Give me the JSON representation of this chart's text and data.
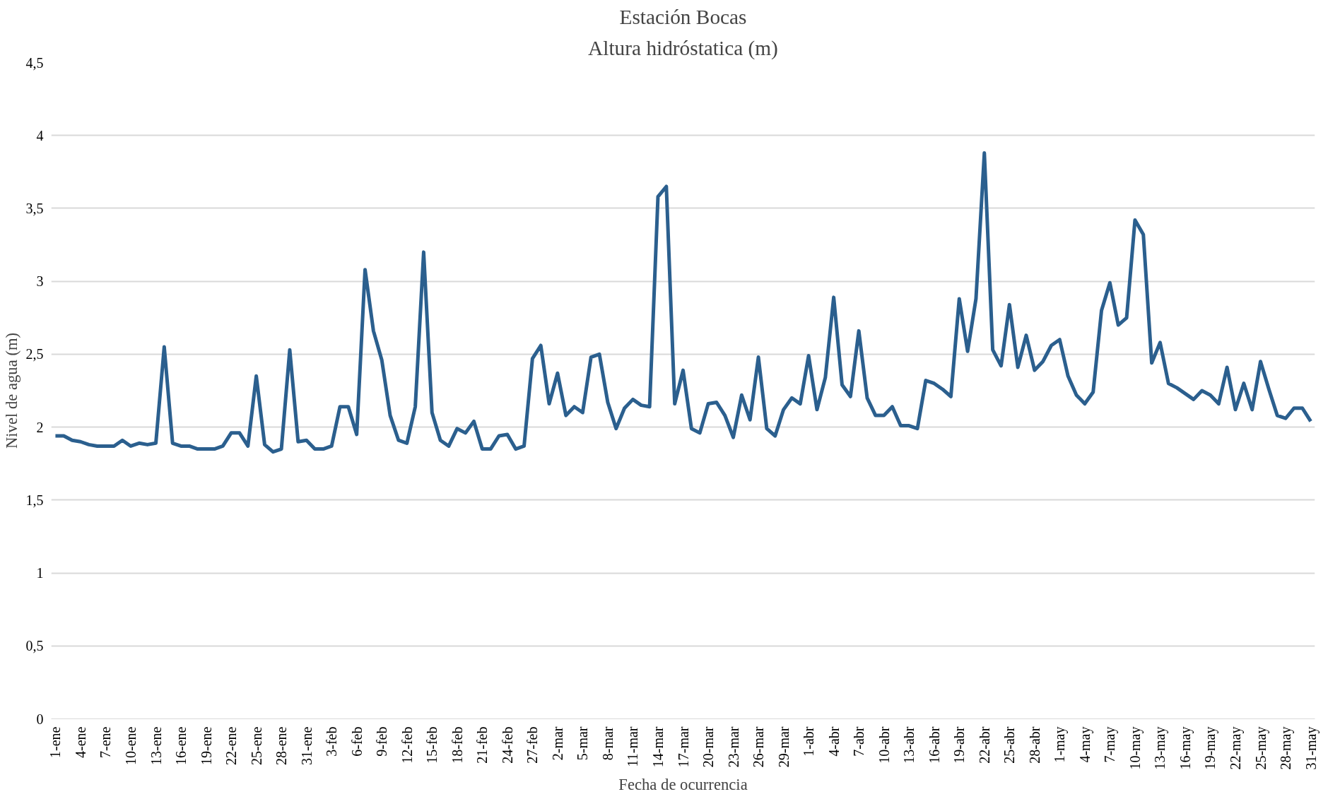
{
  "chart_data": {
    "type": "line",
    "title": "Estación Bocas",
    "subtitle": "Altura hidróstatica (m)",
    "xlabel": "Fecha de ocurrencia",
    "ylabel": "Nivel de agua (m)",
    "categories": [
      "1-ene",
      null,
      null,
      "4-ene",
      null,
      null,
      "7-ene",
      null,
      null,
      "10-ene",
      null,
      null,
      "13-ene",
      null,
      null,
      "16-ene",
      null,
      null,
      "19-ene",
      null,
      null,
      "22-ene",
      null,
      null,
      "25-ene",
      null,
      null,
      "28-ene",
      null,
      null,
      "31-ene",
      null,
      null,
      "3-feb",
      null,
      null,
      "6-feb",
      null,
      null,
      "9-feb",
      null,
      null,
      "12-feb",
      null,
      null,
      "15-feb",
      null,
      null,
      "18-feb",
      null,
      null,
      "21-feb",
      null,
      null,
      "24-feb",
      null,
      null,
      "27-feb",
      null,
      null,
      "2-mar",
      null,
      null,
      "5-mar",
      null,
      null,
      "8-mar",
      null,
      null,
      "11-mar",
      null,
      null,
      "14-mar",
      null,
      null,
      "17-mar",
      null,
      null,
      "20-mar",
      null,
      null,
      "23-mar",
      null,
      null,
      "26-mar",
      null,
      null,
      "29-mar",
      null,
      null,
      "1-abr",
      null,
      null,
      "4-abr",
      null,
      null,
      "7-abr",
      null,
      null,
      "10-abr",
      null,
      null,
      "13-abr",
      null,
      null,
      "16-abr",
      null,
      null,
      "19-abr",
      null,
      null,
      "22-abr",
      null,
      null,
      "25-abr",
      null,
      null,
      "28-abr",
      null,
      null,
      "1-may",
      null,
      null,
      "4-may",
      null,
      null,
      "7-may",
      null,
      null,
      "10-may",
      null,
      null,
      "13-may",
      null,
      null,
      "16-may",
      null,
      null,
      "19-may",
      null,
      null,
      "22-may",
      null,
      null,
      "25-may",
      null,
      null,
      "28-may",
      null,
      null,
      "31-may"
    ],
    "series": [
      {
        "color": "#2b5f8e",
        "values": [
          1.94,
          1.94,
          1.91,
          1.9,
          1.88,
          1.87,
          1.87,
          1.87,
          1.91,
          1.87,
          1.89,
          1.88,
          1.89,
          2.55,
          1.89,
          1.87,
          1.87,
          1.85,
          1.85,
          1.85,
          1.87,
          1.96,
          1.96,
          1.87,
          2.35,
          1.88,
          1.83,
          1.85,
          2.53,
          1.9,
          1.91,
          1.85,
          1.85,
          1.87,
          2.14,
          2.14,
          1.95,
          3.08,
          2.66,
          2.46,
          2.08,
          1.91,
          1.89,
          2.14,
          3.2,
          2.1,
          1.91,
          1.87,
          1.99,
          1.96,
          2.04,
          1.85,
          1.85,
          1.94,
          1.95,
          1.85,
          1.87,
          2.47,
          2.56,
          2.16,
          2.37,
          2.08,
          2.14,
          2.1,
          2.48,
          2.5,
          2.17,
          1.99,
          2.13,
          2.19,
          2.15,
          2.14,
          3.58,
          3.65,
          2.16,
          2.39,
          1.99,
          1.96,
          2.16,
          2.17,
          2.08,
          1.93,
          2.22,
          2.05,
          2.48,
          1.99,
          1.94,
          2.12,
          2.2,
          2.16,
          2.49,
          2.12,
          2.34,
          2.89,
          2.29,
          2.21,
          2.66,
          2.2,
          2.08,
          2.08,
          2.14,
          2.01,
          2.01,
          1.99,
          2.32,
          2.3,
          2.26,
          2.21,
          2.88,
          2.52,
          2.88,
          3.88,
          2.53,
          2.42,
          2.84,
          2.41,
          2.63,
          2.39,
          2.45,
          2.56,
          2.6,
          2.35,
          2.22,
          2.16,
          2.24,
          2.8,
          2.99,
          2.7,
          2.75,
          3.42,
          3.32,
          2.44,
          2.58,
          2.3,
          2.27,
          2.23,
          2.19,
          2.25,
          2.22,
          2.16,
          2.41,
          2.12,
          2.3,
          2.12,
          2.45,
          2.26,
          2.08,
          2.06,
          2.13,
          2.13,
          2.04
        ]
      }
    ],
    "ylim": [
      0,
      4.5
    ],
    "yticks": [
      0,
      {
        "value": 0.5,
        "label": "0,5"
      },
      1,
      {
        "value": 1.5,
        "label": "1,5"
      },
      2,
      {
        "value": 2.5,
        "label": "2,5"
      },
      3,
      {
        "value": 3.5,
        "label": "3,5"
      },
      4,
      {
        "value": 4.5,
        "label": "4,5"
      }
    ],
    "grid": "y",
    "line_style": "solid"
  }
}
